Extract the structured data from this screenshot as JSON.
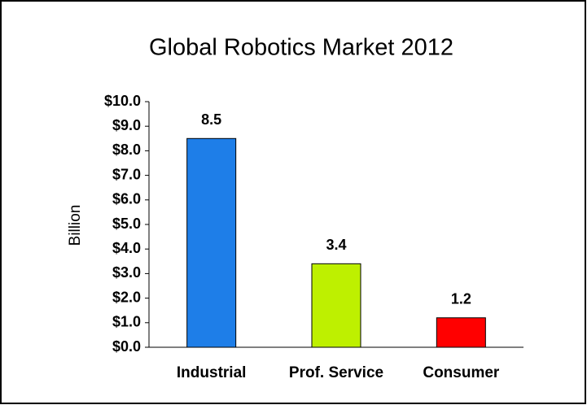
{
  "chart_data": {
    "type": "bar",
    "title": "Global Robotics Market 2012",
    "y_label": "Billion",
    "categories": [
      "Industrial",
      "Prof. Service",
      "Consumer"
    ],
    "values": [
      8.5,
      3.4,
      1.2
    ],
    "colors": [
      "#1e7ee8",
      "#bef000",
      "#ff0000"
    ],
    "ylim": [
      0,
      10
    ],
    "yticks": [
      {
        "value": 0,
        "label": "$0.0"
      },
      {
        "value": 1,
        "label": "$1.0"
      },
      {
        "value": 2,
        "label": "$2.0"
      },
      {
        "value": 3,
        "label": "$3.0"
      },
      {
        "value": 4,
        "label": "$4.0"
      },
      {
        "value": 5,
        "label": "$5.0"
      },
      {
        "value": 6,
        "label": "$6.0"
      },
      {
        "value": 7,
        "label": "$7.0"
      },
      {
        "value": 8,
        "label": "$8.0"
      },
      {
        "value": 9,
        "label": "$9.0"
      },
      {
        "value": 10,
        "label": "$10.0"
      }
    ],
    "grid": false
  }
}
